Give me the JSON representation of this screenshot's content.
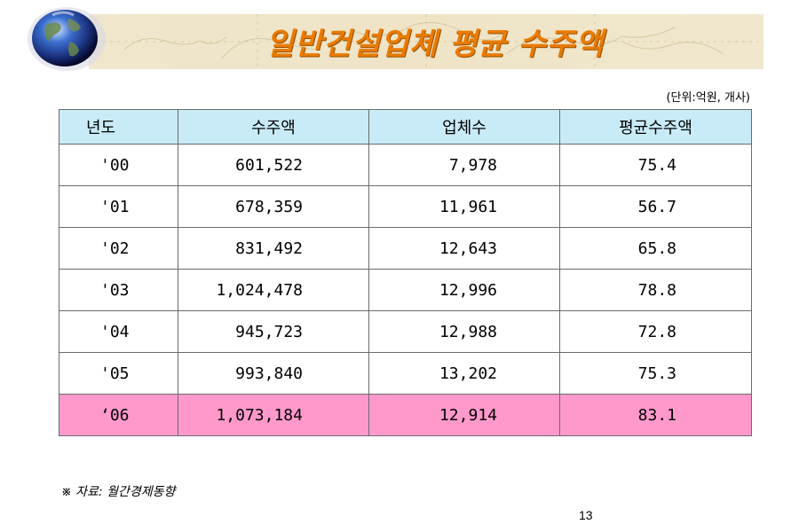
{
  "slide": {
    "title": "일반건설업체 평균 수주액",
    "unit_note": "(단위:억원, 개사)",
    "source_note": "※ 자료: 월간경제동향",
    "page_number": "13"
  },
  "colors": {
    "title": "#e97b00",
    "banner": "#efe6cc",
    "header_row": "#c9ebf7",
    "highlight_row": "#ff99cc",
    "border": "#6b6b6b"
  },
  "icons": [
    "globe-icon"
  ],
  "table": {
    "headers": [
      "년도",
      "수주액",
      "업체수",
      "평균수주액"
    ],
    "rows": [
      {
        "year": "'00",
        "orders": "601,522",
        "companies": "7,978",
        "average": "75.4"
      },
      {
        "year": "'01",
        "orders": "678,359",
        "companies": "11,961",
        "average": "56.7"
      },
      {
        "year": "'02",
        "orders": "831,492",
        "companies": "12,643",
        "average": "65.8"
      },
      {
        "year": "'03",
        "orders": "1,024,478",
        "companies": "12,996",
        "average": "78.8"
      },
      {
        "year": "'04",
        "orders": "945,723",
        "companies": "12,988",
        "average": "72.8"
      },
      {
        "year": "'05",
        "orders": "993,840",
        "companies": "13,202",
        "average": "75.3"
      },
      {
        "year": "‘06",
        "orders": "1,073,184",
        "companies": "12,914",
        "average": "83.1"
      }
    ],
    "highlighted_row": 6
  }
}
